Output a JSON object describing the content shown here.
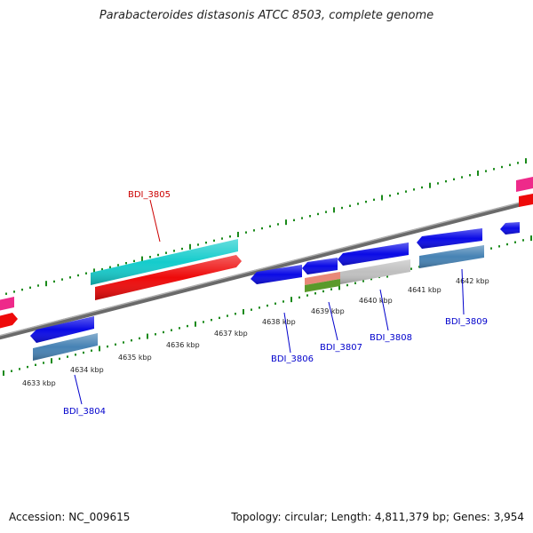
{
  "title": "Parabacteroides distasonis ATCC 8503, complete genome",
  "accession": "Accession: NC_009615",
  "topology": "Topology: circular; Length: 4,811,379 bp; Genes: 3,954",
  "colors": {
    "backbone": "#8a8a8a",
    "tick": "#1a8a1a",
    "label_blue": "#0000cc",
    "label_red": "#cc0000",
    "gene_blue": "#0a0ae6",
    "gene_red": "#ee0a0a",
    "gene_cyan": "#14cccc",
    "gene_steel": "#4682b4",
    "gene_pink": "#ee2a8a",
    "gene_gray": "#c0c0c0",
    "gene_salmon": "#e88878",
    "gene_green": "#5a9a2a"
  },
  "scale": {
    "tick_labels": [
      {
        "kbp": 4633,
        "text": "4633 kbp"
      },
      {
        "kbp": 4634,
        "text": "4634 kbp"
      },
      {
        "kbp": 4635,
        "text": "4635 kbp"
      },
      {
        "kbp": 4636,
        "text": "4636 kbp"
      },
      {
        "kbp": 4637,
        "text": "4637 kbp"
      },
      {
        "kbp": 4638,
        "text": "4638 kbp"
      },
      {
        "kbp": 4639,
        "text": "4639 kbp"
      },
      {
        "kbp": 4640,
        "text": "4640 kbp"
      },
      {
        "kbp": 4641,
        "text": "4641 kbp"
      },
      {
        "kbp": 4642,
        "text": "4642 kbp"
      }
    ]
  },
  "gene_labels": [
    {
      "text": "BDI_3805",
      "color": "label_red"
    },
    {
      "text": "BDI_3804",
      "color": "label_blue"
    },
    {
      "text": "BDI_3806",
      "color": "label_blue"
    },
    {
      "text": "BDI_3807",
      "color": "label_blue"
    },
    {
      "text": "BDI_3808",
      "color": "label_blue"
    },
    {
      "text": "BDI_3809",
      "color": "label_blue"
    }
  ]
}
